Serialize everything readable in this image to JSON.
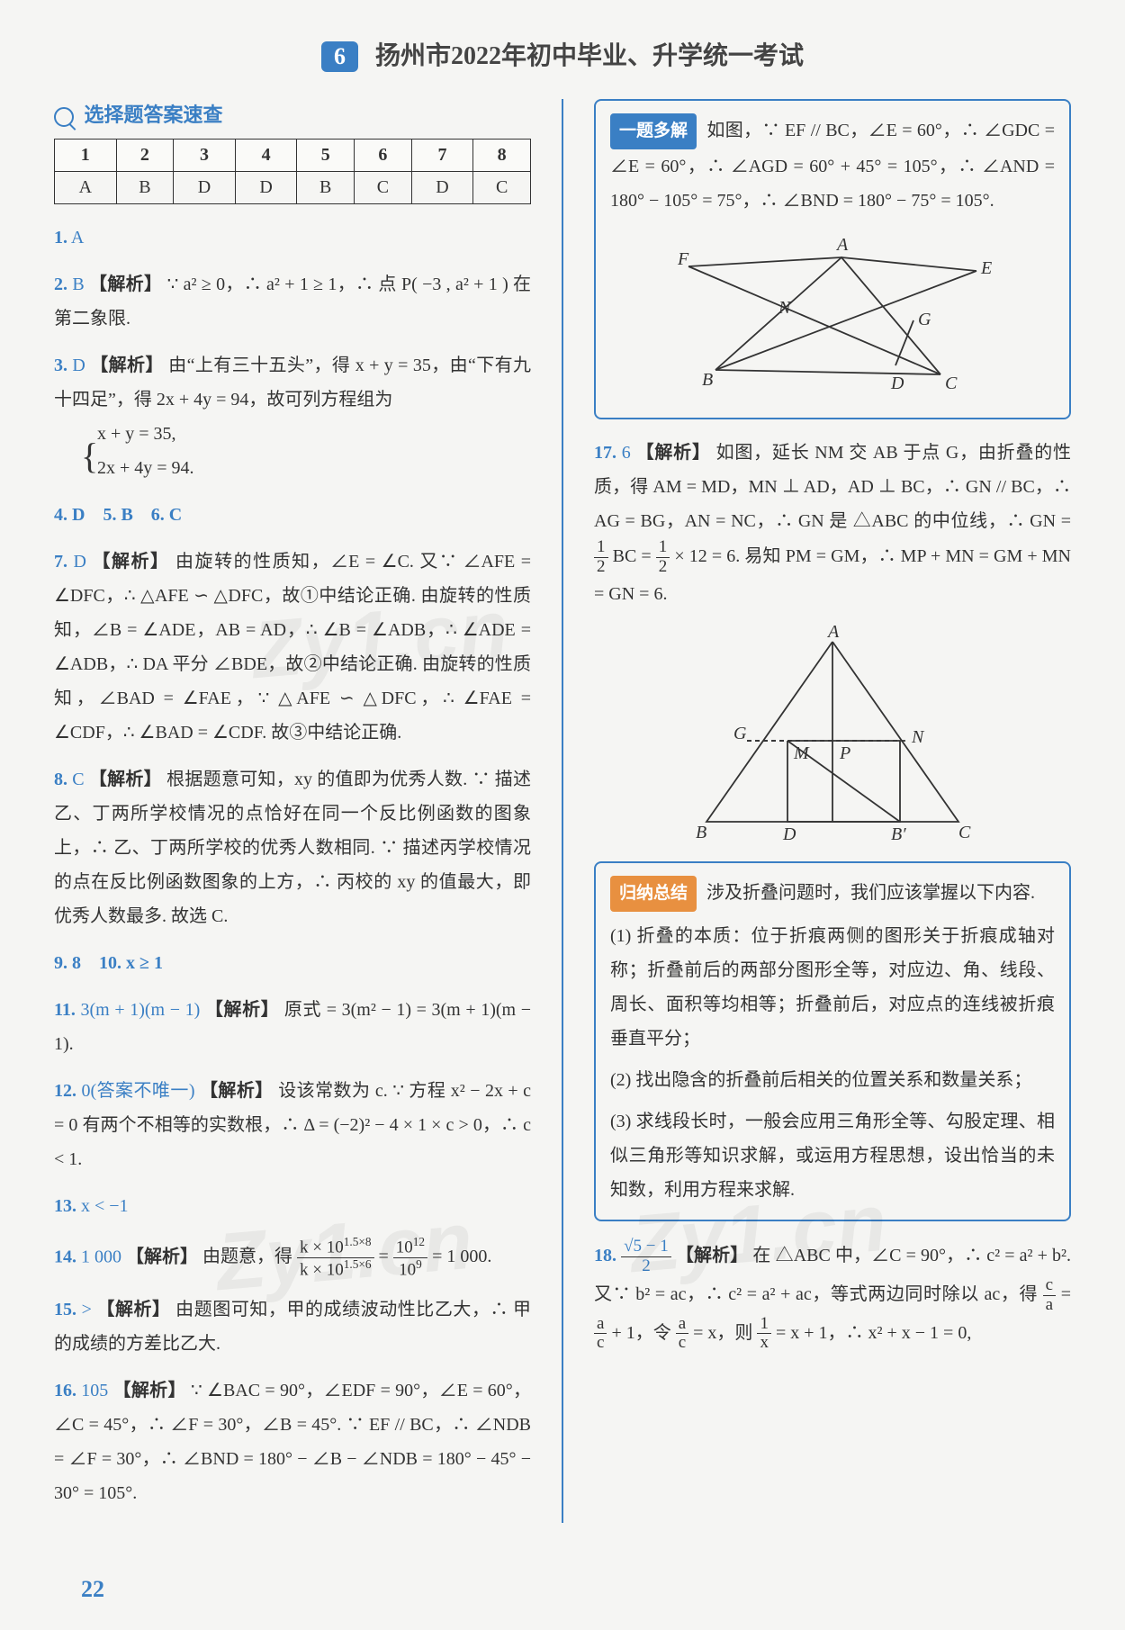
{
  "header": {
    "badge": "6",
    "title": "扬州市2022年初中毕业、升学统一考试"
  },
  "quickSection": {
    "title": "选择题答案速查"
  },
  "answerTable": {
    "headers": [
      "1",
      "2",
      "3",
      "4",
      "5",
      "6",
      "7",
      "8"
    ],
    "answers": [
      "A",
      "B",
      "D",
      "D",
      "B",
      "C",
      "D",
      "C"
    ],
    "colors": {
      "border": "#333333",
      "bg": "#fafaf8"
    }
  },
  "leftItems": {
    "q1": {
      "num": "1.",
      "ans": "A"
    },
    "q2": {
      "num": "2.",
      "ans": "B",
      "tag": "【解析】",
      "body": " ∵ a² ≥ 0，∴ a² + 1 ≥ 1，∴ 点 P( −3 , a² + 1 ) 在第二象限."
    },
    "q3": {
      "num": "3.",
      "ans": "D",
      "tag": "【解析】",
      "body": " 由“上有三十五头”，得 x + y = 35，由“下有九十四足”，得 2x + 4y = 94，故可列方程组为",
      "sys1": "x + y = 35,",
      "sys2": "2x + 4y = 94."
    },
    "q456": {
      "text": "4. D　5. B　6. C"
    },
    "q7": {
      "num": "7.",
      "ans": "D",
      "tag": "【解析】",
      "body": " 由旋转的性质知，∠E = ∠C. 又∵ ∠AFE = ∠DFC，∴ △AFE ∽ △DFC，故①中结论正确. 由旋转的性质知，∠B = ∠ADE，AB = AD，∴ ∠B = ∠ADB，∴ ∠ADE = ∠ADB，∴ DA 平分 ∠BDE，故②中结论正确. 由旋转的性质知，∠BAD = ∠FAE，∵ △AFE ∽ △DFC，∴ ∠FAE = ∠CDF，∴ ∠BAD = ∠CDF. 故③中结论正确."
    },
    "q8": {
      "num": "8.",
      "ans": "C",
      "tag": "【解析】",
      "body": " 根据题意可知，xy 的值即为优秀人数. ∵ 描述乙、丁两所学校情况的点恰好在同一个反比例函数的图象上，∴ 乙、丁两所学校的优秀人数相同. ∵ 描述丙学校情况的点在反比例函数图象的上方，∴ 丙校的 xy 的值最大，即优秀人数最多. 故选 C."
    },
    "q9_10": {
      "text": "9. 8　10. x ≥ 1"
    },
    "q11": {
      "num": "11.",
      "ans": "3(m + 1)(m − 1)",
      "tag": "【解析】",
      "body": " 原式 = 3(m² − 1) = 3(m + 1)(m − 1)."
    },
    "q12": {
      "num": "12.",
      "ans": "0(答案不唯一)",
      "tag": "【解析】",
      "body": " 设该常数为 c. ∵ 方程 x² − 2x + c = 0 有两个不相等的实数根，∴ Δ = (−2)² − 4 × 1 × c > 0，∴ c < 1."
    },
    "q13": {
      "num": "13.",
      "ans": "x < −1"
    },
    "q14": {
      "num": "14.",
      "ans": "1 000",
      "tag": "【解析】",
      "body_html": " 由题意，得 <span class='frac'><span class='n'>k × 10<sup>1.5×8</sup></span><span class='d'>k × 10<sup>1.5×6</sup></span></span> = <span class='frac'><span class='n'>10<sup>12</sup></span><span class='d'>10<sup>9</sup></span></span> = 1 000."
    },
    "q15": {
      "num": "15.",
      "ans": ">",
      "tag": "【解析】",
      "body": " 由题图可知，甲的成绩波动性比乙大，∴ 甲的成绩的方差比乙大."
    },
    "q16": {
      "num": "16.",
      "ans": "105",
      "tag": "【解析】",
      "body": " ∵ ∠BAC = 90°，∠EDF = 90°，∠E = 60°，∠C = 45°，∴ ∠F = 30°，∠B = 45°. ∵ EF // BC，∴ ∠NDB = ∠F = 30°，∴ ∠BND = 180° − ∠B − ∠NDB = 180° − 45° − 30° = 105°."
    }
  },
  "rightCol": {
    "box1": {
      "title": "一题多解",
      "body": " 如图，∵ EF // BC，∠E = 60°，∴ ∠GDC = ∠E = 60°，∴ ∠AGD = 60° + 45° = 105°，∴ ∠AND = 180° − 105° = 75°，∴ ∠BND = 180° − 75° = 105°.",
      "figure": {
        "labels": [
          "F",
          "A",
          "E",
          "N",
          "G",
          "B",
          "D",
          "C"
        ],
        "strokeColor": "#333333"
      }
    },
    "q17": {
      "num": "17.",
      "ans": "6",
      "tag": "【解析】",
      "body_html": " 如图，延长 NM 交 AB 于点 G，由折叠的性质，得 AM = MD，MN ⊥ AD，AD ⊥ BC，∴ GN // BC，∴ AG = BG，AN = NC，∴ GN 是 △ABC 的中位线，∴ GN = <span class='frac'><span class='n'>1</span><span class='d'>2</span></span> BC = <span class='frac'><span class='n'>1</span><span class='d'>2</span></span> × 12 = 6. 易知 PM = GM，∴ MP + MN = GM + MN = GN = 6.",
      "figure": {
        "labels": [
          "A",
          "G",
          "M",
          "P",
          "N",
          "B",
          "D",
          "B′",
          "C"
        ],
        "strokeColor": "#333333"
      }
    },
    "box2": {
      "title": "归纳总结",
      "intro": " 涉及折叠问题时，我们应该掌握以下内容.",
      "p1": "(1) 折叠的本质：位于折痕两侧的图形关于折痕成轴对称；折叠前后的两部分图形全等，对应边、角、线段、周长、面积等均相等；折叠前后，对应点的连线被折痕垂直平分；",
      "p2": "(2) 找出隐含的折叠前后相关的位置关系和数量关系；",
      "p3": "(3) 求线段长时，一般会应用三角形全等、勾股定理、相似三角形等知识求解，或运用方程思想，设出恰当的未知数，利用方程来求解."
    },
    "q18": {
      "num": "18.",
      "ans_html": "<span class='frac'><span class='n'>√5 − 1</span><span class='d'>2</span></span>",
      "tag": "【解析】",
      "body_html": " 在 △ABC 中，∠C = 90°，∴ c² = a² + b². 又∵ b² = ac，∴ c² = a² + ac，等式两边同时除以 ac，得 <span class='frac'><span class='n'>c</span><span class='d'>a</span></span> = <span class='frac'><span class='n'>a</span><span class='d'>c</span></span> + 1，令 <span class='frac'><span class='n'>a</span><span class='d'>c</span></span> = x，则 <span class='frac'><span class='n'>1</span><span class='d'>x</span></span> = x + 1，∴ x² + x − 1 = 0,"
    }
  },
  "pageNumber": "22",
  "watermarks": {
    "text": "Zy1.cn"
  },
  "theme": {
    "accent": "#3a7fc4",
    "orange": "#e89040",
    "text": "#333333",
    "bg": "#f5f5f3"
  }
}
